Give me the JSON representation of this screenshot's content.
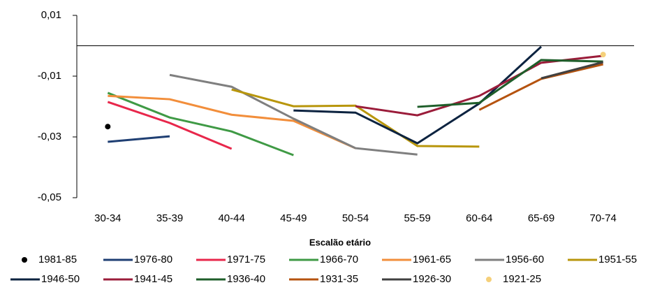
{
  "chart_data": {
    "type": "line",
    "x_label": "Escalão etário",
    "categories": [
      "30-34",
      "35-39",
      "40-44",
      "45-49",
      "50-54",
      "55-59",
      "60-64",
      "65-69",
      "70-74"
    ],
    "ylim": [
      -0.05,
      0.01
    ],
    "yticks": [
      {
        "value": 0.01,
        "label": "0,01"
      },
      {
        "value": -0.01,
        "label": "-0,01"
      },
      {
        "value": -0.03,
        "label": "-0,03"
      },
      {
        "value": -0.05,
        "label": "-0,05"
      }
    ],
    "zero_line": true,
    "legend": "bottom",
    "series": [
      {
        "name": "1981-85",
        "color": "#000000",
        "style": "marker",
        "values": [
          -0.0266,
          null,
          null,
          null,
          null,
          null,
          null,
          null,
          null
        ]
      },
      {
        "name": "1976-80",
        "color": "#1f3f73",
        "style": "line",
        "values": [
          -0.0316,
          -0.0298,
          null,
          null,
          null,
          null,
          null,
          null,
          null
        ]
      },
      {
        "name": "1971-75",
        "color": "#e8274b",
        "style": "line",
        "values": [
          -0.0185,
          -0.0254,
          -0.0339,
          null,
          null,
          null,
          null,
          null,
          null
        ]
      },
      {
        "name": "1966-70",
        "color": "#3f9a45",
        "style": "line",
        "values": [
          -0.0155,
          -0.0236,
          -0.0282,
          -0.036,
          null,
          null,
          null,
          null,
          null
        ]
      },
      {
        "name": "1961-65",
        "color": "#f28e3b",
        "style": "line",
        "values": [
          -0.0165,
          -0.0176,
          -0.0227,
          -0.0247,
          -0.0337,
          null,
          null,
          null,
          null
        ]
      },
      {
        "name": "1956-60",
        "color": "#7f7f7f",
        "style": "line",
        "values": [
          null,
          -0.0096,
          -0.0135,
          -0.024,
          -0.0337,
          -0.0358,
          null,
          null,
          null
        ]
      },
      {
        "name": "1951-55",
        "color": "#b8960c",
        "style": "line",
        "values": [
          null,
          null,
          -0.0144,
          -0.0199,
          -0.0197,
          -0.033,
          -0.0332,
          null,
          null
        ]
      },
      {
        "name": "1946-50",
        "color": "#0c2340",
        "style": "line",
        "values": [
          null,
          null,
          null,
          -0.0213,
          -0.022,
          -0.0321,
          -0.019,
          -0.0003,
          null
        ]
      },
      {
        "name": "1941-45",
        "color": "#9b1c3a",
        "style": "line",
        "values": [
          null,
          null,
          null,
          null,
          -0.0199,
          -0.0229,
          -0.0165,
          -0.0056,
          -0.0033
        ]
      },
      {
        "name": "1936-40",
        "color": "#1e5e2a",
        "style": "line",
        "values": [
          null,
          null,
          null,
          null,
          null,
          -0.0201,
          -0.0188,
          -0.0047,
          -0.0052
        ]
      },
      {
        "name": "1931-35",
        "color": "#b5530f",
        "style": "line",
        "values": [
          null,
          null,
          null,
          null,
          null,
          null,
          -0.0211,
          -0.0109,
          -0.0061
        ]
      },
      {
        "name": "1926-30",
        "color": "#404040",
        "style": "line",
        "values": [
          null,
          null,
          null,
          null,
          null,
          null,
          null,
          -0.0107,
          -0.0054
        ]
      },
      {
        "name": "1921-25",
        "color": "#f5d07a",
        "style": "marker",
        "values": [
          null,
          null,
          null,
          null,
          null,
          null,
          null,
          null,
          -0.0029
        ]
      }
    ]
  }
}
